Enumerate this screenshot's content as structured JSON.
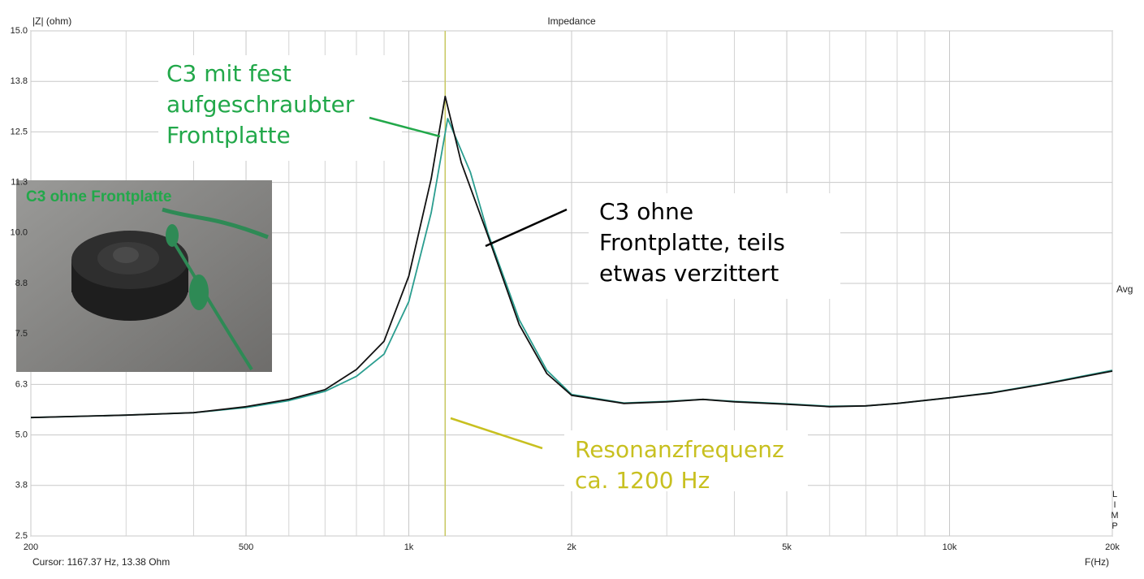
{
  "chart_data": {
    "type": "line",
    "title": "Impedance",
    "y_label": "|Z| (ohm)",
    "x_label": "F(Hz)",
    "right_label": "Avg",
    "side_label": "LIMP",
    "cursor_label": "Cursor: 1167.37 Hz, 13.38 Ohm",
    "cursor_x": 1167.37,
    "cursor_color": "#c8c860",
    "log_x": true,
    "grid": true,
    "xlim": [
      200,
      20000
    ],
    "ylim": [
      2.5,
      15
    ],
    "xticks": [
      200,
      500,
      {
        "value": 1000,
        "label": "1k"
      },
      {
        "value": 2000,
        "label": "2k"
      },
      {
        "value": 5000,
        "label": "5k"
      },
      {
        "value": 10000,
        "label": "10k"
      },
      {
        "value": 20000,
        "label": "20k"
      }
    ],
    "xgrid": [
      300,
      400,
      600,
      700,
      800,
      900,
      3000,
      4000,
      6000,
      7000,
      8000,
      9000
    ],
    "yticks": [
      {
        "value": 15,
        "label": "15.0"
      },
      {
        "value": 13.75,
        "label": "13.8"
      },
      {
        "value": 12.5,
        "label": "12.5"
      },
      {
        "value": 11.25,
        "label": "11.3"
      },
      {
        "value": 10,
        "label": "10.0"
      },
      {
        "value": 8.75,
        "label": "8.8"
      },
      {
        "value": 7.5,
        "label": "7.5"
      },
      {
        "value": 6.25,
        "label": "6.3"
      },
      {
        "value": 5,
        "label": "5.0"
      },
      {
        "value": 3.75,
        "label": "3.8"
      },
      {
        "value": 2.5,
        "label": "2.5"
      }
    ],
    "series": [
      {
        "color": "#2a9d8f",
        "x": [
          200,
          300,
          400,
          500,
          600,
          700,
          800,
          900,
          1000,
          1100,
          1180,
          1300,
          1400,
          1600,
          1800,
          2000,
          2500,
          3000,
          3500,
          4000,
          5000,
          6000,
          7000,
          8000,
          10000,
          12000,
          15000,
          20000
        ],
        "values": [
          5.43,
          5.49,
          5.55,
          5.68,
          5.85,
          6.08,
          6.45,
          7.0,
          8.3,
          10.5,
          12.83,
          11.5,
          10.0,
          7.85,
          6.6,
          6.0,
          5.79,
          5.83,
          5.88,
          5.83,
          5.77,
          5.71,
          5.72,
          5.78,
          5.92,
          6.05,
          6.27,
          6.6
        ]
      },
      {
        "color": "#111111",
        "x": [
          200,
          300,
          400,
          500,
          600,
          700,
          800,
          900,
          1000,
          1100,
          1167.37,
          1250,
          1400,
          1600,
          1800,
          2000,
          2500,
          3000,
          3500,
          4000,
          5000,
          6000,
          7000,
          8000,
          10000,
          12000,
          15000,
          20000
        ],
        "values": [
          5.43,
          5.49,
          5.55,
          5.7,
          5.88,
          6.12,
          6.62,
          7.32,
          8.93,
          11.34,
          13.38,
          11.74,
          9.94,
          7.73,
          6.52,
          5.98,
          5.78,
          5.82,
          5.88,
          5.82,
          5.76,
          5.7,
          5.72,
          5.78,
          5.92,
          6.04,
          6.26,
          6.58
        ]
      }
    ],
    "annotations": [
      {
        "lines": [
          "C3 mit fest",
          "aufgeschraubter",
          "Frontplatte"
        ],
        "color": "#22a84a"
      },
      {
        "lines": [
          "C3 ohne",
          "Frontplatte, teils",
          "etwas verzittert"
        ],
        "color": "#000000"
      },
      {
        "lines": [
          "Resonanzfrequenz",
          "ca. 1200 Hz"
        ],
        "color": "#c8c020"
      }
    ],
    "photo_label": "C3 ohne Frontplatte"
  }
}
